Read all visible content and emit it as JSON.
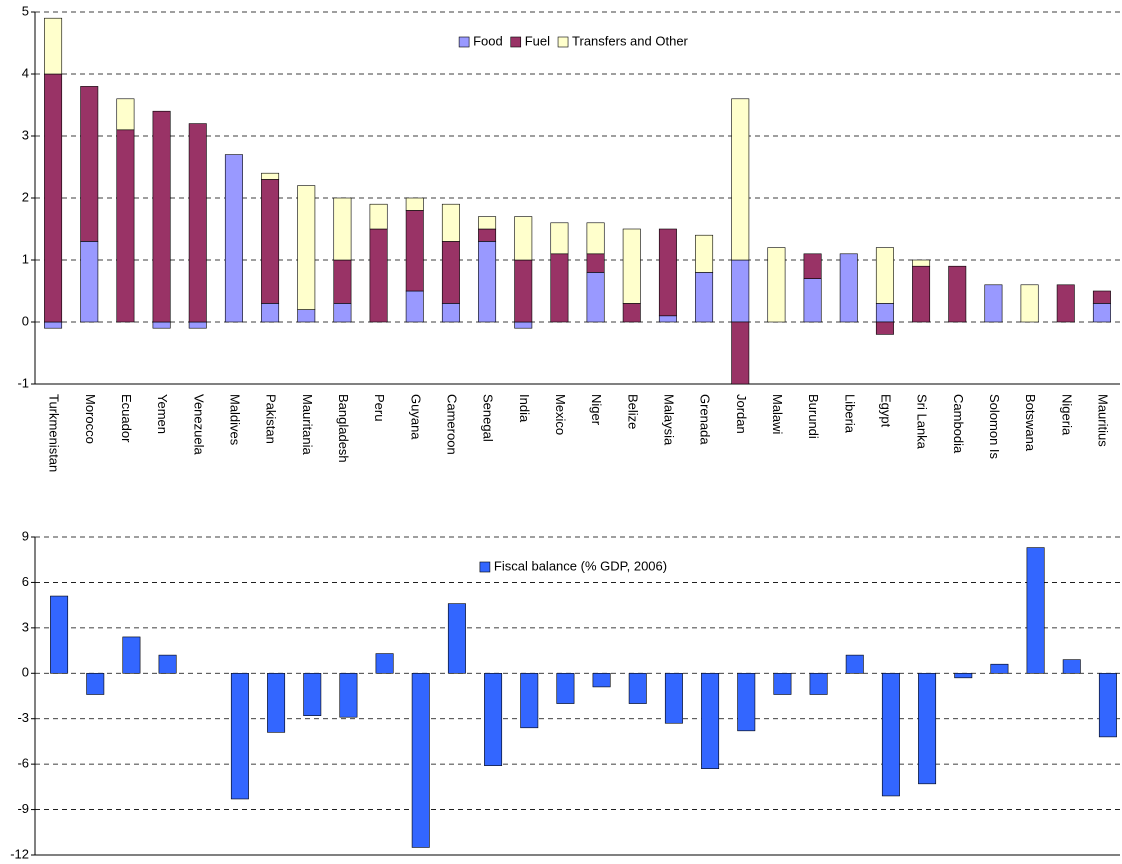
{
  "chart_data": [
    {
      "type": "stacked_bar",
      "categories": [
        "Turkmenistan",
        "Morocco",
        "Ecuador",
        "Yemen",
        "Venezuela",
        "Maldives",
        "Pakistan",
        "Mauritania",
        "Bangladesh",
        "Peru",
        "Guyana",
        "Cameroon",
        "Senegal",
        "India",
        "Mexico",
        "Niger",
        "Belize",
        "Malaysia",
        "Grenada",
        "Jordan",
        "Malawi",
        "Burundi",
        "Liberia",
        "Egypt",
        "Sri Lanka",
        "Cambodia",
        "Solomon Is",
        "Botswana",
        "Nigeria",
        "Mauritius"
      ],
      "series": [
        {
          "name": "Food",
          "color": "#9999ff",
          "values": [
            -0.1,
            1.3,
            0,
            -0.1,
            -0.1,
            2.7,
            0.3,
            0.2,
            0.3,
            0,
            0.5,
            0.3,
            1.3,
            -0.1,
            0,
            0.8,
            0,
            0.1,
            0.8,
            1.0,
            0,
            0.7,
            1.1,
            0.3,
            0,
            0,
            0.6,
            0,
            0,
            0.3
          ]
        },
        {
          "name": "Fuel",
          "color": "#993366",
          "values": [
            4.0,
            2.5,
            3.1,
            3.4,
            3.2,
            0,
            2.0,
            0,
            0.7,
            1.5,
            1.3,
            1.0,
            0.2,
            1.0,
            1.1,
            0.3,
            0.3,
            1.4,
            0,
            -1.0,
            0,
            0.4,
            0,
            -0.2,
            0.9,
            0.9,
            0,
            0,
            0.6,
            0.2
          ]
        },
        {
          "name": "Transfers and Other",
          "color": "#ffffcc",
          "values": [
            0.9,
            0,
            0.5,
            0,
            0,
            0,
            0.1,
            2.0,
            1.0,
            0.4,
            0.2,
            0.6,
            0.2,
            0.7,
            0.5,
            0.5,
            1.2,
            0,
            0.6,
            2.6,
            1.2,
            0,
            0,
            0.9,
            0.1,
            0,
            0,
            0.6,
            0,
            0
          ]
        }
      ],
      "ylim": [
        -1,
        5
      ],
      "yticks": [
        -1,
        0,
        1,
        2,
        3,
        4,
        5
      ],
      "grid": true
    },
    {
      "type": "bar",
      "series": [
        {
          "name": "Fiscal balance (% GDP, 2006)",
          "color": "#3366ff",
          "values": [
            5.1,
            -1.4,
            2.4,
            1.2,
            null,
            -8.3,
            -3.9,
            -2.8,
            -2.9,
            1.3,
            -11.5,
            4.6,
            -6.1,
            -3.6,
            -2.0,
            -0.9,
            -2.0,
            -3.3,
            -6.3,
            -3.8,
            -1.4,
            -1.4,
            1.2,
            -8.1,
            -7.3,
            -0.3,
            0.6,
            8.3,
            0.9,
            -4.2
          ]
        }
      ],
      "ylim": [
        -12,
        9
      ],
      "yticks": [
        -12,
        -9,
        -6,
        -3,
        0,
        3,
        6,
        9
      ],
      "grid": true
    }
  ]
}
